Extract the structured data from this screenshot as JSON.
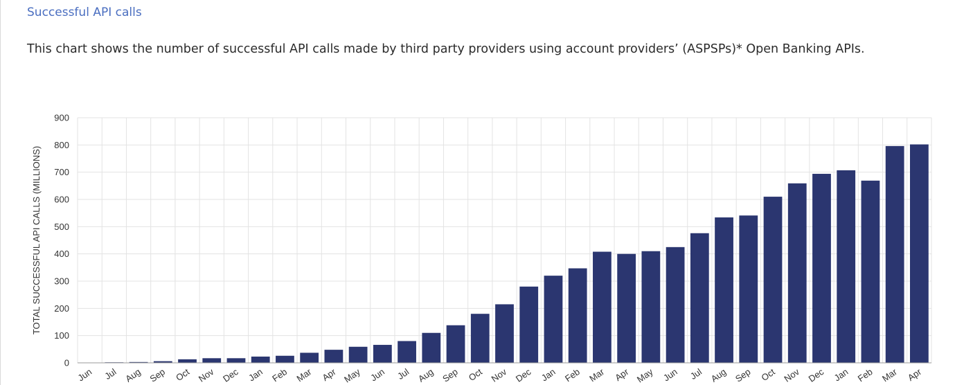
{
  "header": {
    "title": "Successful API calls",
    "description": "This chart shows the number of successful API calls made by third party providers using account providers’ (ASPSPs)* Open Banking APIs."
  },
  "colors": {
    "bar": "#2b3670",
    "grid": "#e3e3e3",
    "title": "#4a6ec0"
  },
  "chart_data": {
    "type": "bar",
    "title": "",
    "xlabel": "",
    "ylabel": "TOTAL SUCCESSFUL API CALLS (MILLIONS)",
    "ylim": [
      0,
      900
    ],
    "yticks": [
      0,
      100,
      200,
      300,
      400,
      500,
      600,
      700,
      800,
      900
    ],
    "grid": true,
    "categories": [
      "Jun",
      "Jul",
      "Aug",
      "Sep",
      "Oct",
      "Nov",
      "Dec",
      "Jan",
      "Feb",
      "Mar",
      "Apr",
      "May",
      "Jun",
      "Jul",
      "Aug",
      "Sep",
      "Oct",
      "Nov",
      "Dec",
      "Jan",
      "Feb",
      "Mar",
      "Apr",
      "May",
      "Jun",
      "Jul",
      "Aug",
      "Sep",
      "Oct",
      "Nov",
      "Dec",
      "Jan",
      "Feb",
      "Mar",
      "Apr"
    ],
    "values": [
      1,
      2,
      3,
      6,
      13,
      17,
      17,
      23,
      26,
      37,
      48,
      59,
      66,
      80,
      110,
      138,
      180,
      215,
      280,
      320,
      347,
      408,
      400,
      410,
      425,
      476,
      534,
      541,
      610,
      659,
      694,
      707,
      669,
      796,
      802
    ]
  }
}
